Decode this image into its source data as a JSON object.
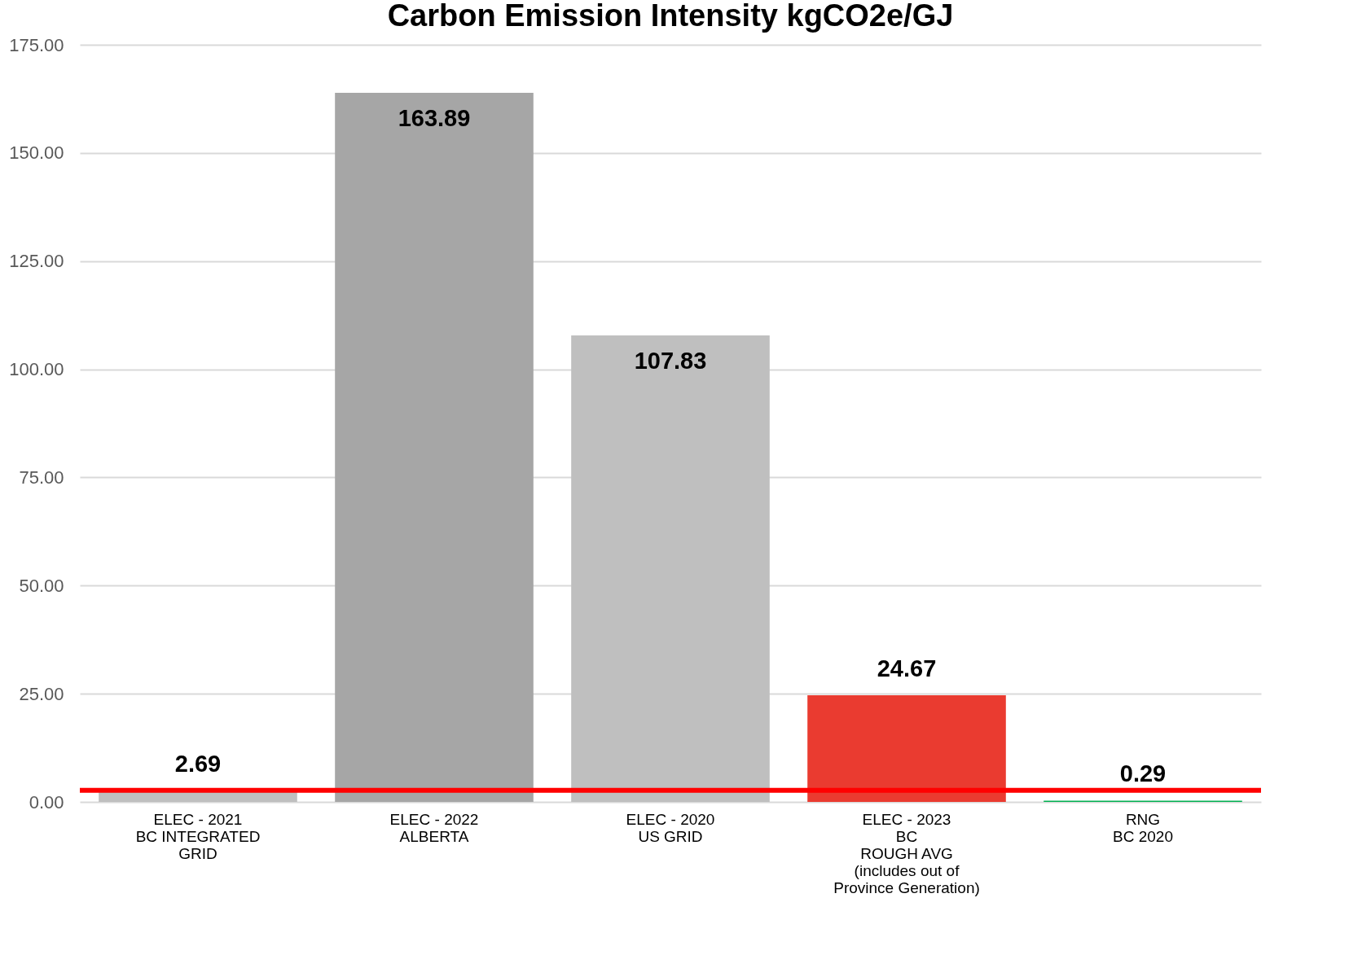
{
  "chart_data": {
    "type": "bar",
    "title": "Carbon Emission Intensity kgCO2e/GJ",
    "categories": [
      "ELEC - 2021\nBC INTEGRATED\nGRID",
      "ELEC - 2022\nALBERTA",
      "ELEC - 2020\nUS GRID",
      "ELEC - 2023\nBC\nROUGH AVG\n(includes out of\nProvince Generation)",
      "RNG\nBC 2020"
    ],
    "values": [
      2.69,
      163.89,
      107.83,
      24.67,
      0.29
    ],
    "colors": [
      "#bfbfbf",
      "#a6a6a6",
      "#bfbfbf",
      "#ea3b30",
      "#00b050"
    ],
    "ylim": [
      0,
      175
    ],
    "yticks": [
      {
        "value": 0,
        "label": "0.00"
      },
      {
        "value": 25,
        "label": "25.00"
      },
      {
        "value": 50,
        "label": "50.00"
      },
      {
        "value": 75,
        "label": "75.00"
      },
      {
        "value": 100,
        "label": "100.00"
      },
      {
        "value": 125,
        "label": "125.00"
      },
      {
        "value": 150,
        "label": "150.00"
      },
      {
        "value": 175,
        "label": "175.00"
      }
    ],
    "grid": "y",
    "data_labels": true,
    "ref_lines": [
      {
        "axis": "y",
        "value": 2.69,
        "label": null,
        "color": "#ff0000"
      }
    ]
  }
}
